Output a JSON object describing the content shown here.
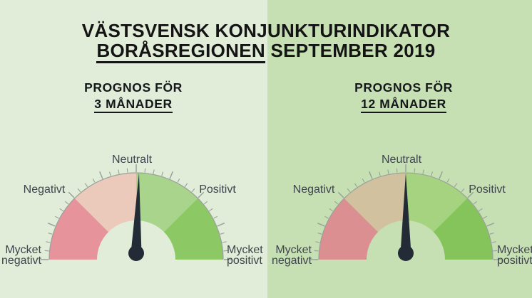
{
  "header": {
    "title_line1": "VÄSTSVENSK KONJUNKTURINDIKATOR",
    "title_line2_underlined": "BORÅSREGIONEN",
    "title_line2_rest": " SEPTEMBER 2019"
  },
  "panels": {
    "left_bg": "#e1ecd9",
    "right_bg": "#c6dfb3"
  },
  "gauges": [
    {
      "id": "forecast-3-months",
      "subtitle_line1": "PROGNOS FÖR",
      "subtitle_line2": "3 MÅNADER",
      "labels": {
        "top": "Neutralt",
        "left": "Negativt",
        "right": "Positivt",
        "bottom_left_line1": "Mycket",
        "bottom_left_line2": "negativt",
        "bottom_right_line1": "Mycket",
        "bottom_right_line2": "positivt"
      },
      "segments": [
        {
          "label": "Mycket negativt",
          "from_deg": 180,
          "to_deg": 135,
          "color": "#e6939b"
        },
        {
          "label": "Negativt",
          "from_deg": 135,
          "to_deg": 90,
          "color": "#ebcabc"
        },
        {
          "label": "Positivt",
          "from_deg": 90,
          "to_deg": 45,
          "color": "#a8d48b"
        },
        {
          "label": "Mycket positivt",
          "from_deg": 45,
          "to_deg": 0,
          "color": "#8cc965"
        }
      ],
      "needle": {
        "color": "#222b36",
        "rotation_deg": 2
      },
      "tick_color": "#99a29a"
    },
    {
      "id": "forecast-12-months",
      "subtitle_line1": "PROGNOS FÖR",
      "subtitle_line2": "12 MÅNADER",
      "labels": {
        "top": "Neutralt",
        "left": "Negativt",
        "right": "Positivt",
        "bottom_left_line1": "Mycket",
        "bottom_left_line2": "negativt",
        "bottom_right_line1": "Mycket",
        "bottom_right_line2": "positivt"
      },
      "segments": [
        {
          "label": "Mycket negativt",
          "from_deg": 180,
          "to_deg": 135,
          "color": "#dc8f90"
        },
        {
          "label": "Negativt",
          "from_deg": 135,
          "to_deg": 90,
          "color": "#d2c19e"
        },
        {
          "label": "Positivt",
          "from_deg": 90,
          "to_deg": 45,
          "color": "#a5d37f"
        },
        {
          "label": "Mycket positivt",
          "from_deg": 45,
          "to_deg": 0,
          "color": "#84c45a"
        }
      ],
      "needle": {
        "color": "#222b36",
        "rotation_deg": 0
      },
      "tick_color": "#99a29a"
    }
  ],
  "chart_data": [
    {
      "type": "gauge",
      "title": "PROGNOS FÖR 3 MÅNADER",
      "scale_labels": [
        "Mycket negativt",
        "Negativt",
        "Neutralt",
        "Positivt",
        "Mycket positivt"
      ],
      "segments": [
        {
          "label": "Mycket negativt",
          "start_deg": 180,
          "end_deg": 135
        },
        {
          "label": "Negativt",
          "start_deg": 135,
          "end_deg": 90
        },
        {
          "label": "Positivt",
          "start_deg": 90,
          "end_deg": 45
        },
        {
          "label": "Mycket positivt",
          "start_deg": 45,
          "end_deg": 0
        }
      ],
      "needle_angle_deg": 88,
      "reading": "Neutralt"
    },
    {
      "type": "gauge",
      "title": "PROGNOS FÖR 12 MÅNADER",
      "scale_labels": [
        "Mycket negativt",
        "Negativt",
        "Neutralt",
        "Positivt",
        "Mycket positivt"
      ],
      "segments": [
        {
          "label": "Mycket negativt",
          "start_deg": 180,
          "end_deg": 135
        },
        {
          "label": "Negativt",
          "start_deg": 135,
          "end_deg": 90
        },
        {
          "label": "Positivt",
          "start_deg": 90,
          "end_deg": 45
        },
        {
          "label": "Mycket positivt",
          "start_deg": 45,
          "end_deg": 0
        }
      ],
      "needle_angle_deg": 90,
      "reading": "Neutralt"
    }
  ]
}
